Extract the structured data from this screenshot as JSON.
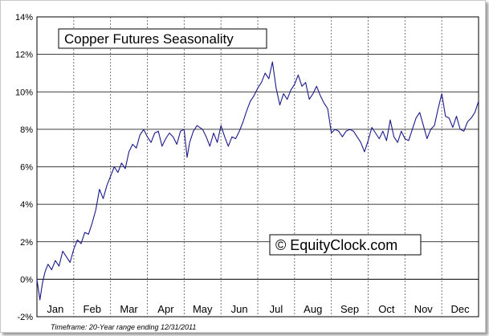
{
  "chart_data": {
    "type": "line",
    "title": "Copper Futures Seasonality",
    "watermark": "© EquityClock.com",
    "footnote": "Timeframe: 20-Year range ending 12/31/2011",
    "xlabel": "",
    "ylabel": "",
    "ylim": [
      -2,
      14
    ],
    "y_ticks": [
      -2,
      0,
      2,
      4,
      6,
      8,
      10,
      12,
      14
    ],
    "y_tick_labels": [
      "-2%",
      "0%",
      "2%",
      "4%",
      "6%",
      "8%",
      "10%",
      "12%",
      "14%"
    ],
    "categories": [
      "Jan",
      "Feb",
      "Mar",
      "Apr",
      "May",
      "Jun",
      "Jul",
      "Aug",
      "Sep",
      "Oct",
      "Nov",
      "Dec"
    ],
    "grid": true,
    "line_color": "#1a1a8c",
    "series": [
      {
        "x": [
          0.0,
          0.08,
          0.15,
          0.22,
          0.3,
          0.4,
          0.5,
          0.6,
          0.7,
          0.8,
          0.9,
          1.0,
          1.1,
          1.2,
          1.3,
          1.4,
          1.5,
          1.6,
          1.7,
          1.8,
          1.9,
          2.0,
          2.1,
          2.2,
          2.3,
          2.4,
          2.5,
          2.6,
          2.7,
          2.8,
          2.9,
          3.0,
          3.1,
          3.2,
          3.3,
          3.4,
          3.5,
          3.6,
          3.7,
          3.8,
          3.9,
          4.0,
          4.08,
          4.15,
          4.25,
          4.35,
          4.5,
          4.6,
          4.7,
          4.8,
          4.9,
          5.0,
          5.1,
          5.2,
          5.3,
          5.4,
          5.5,
          5.6,
          5.7,
          5.8,
          5.9,
          6.0,
          6.1,
          6.2,
          6.3,
          6.4,
          6.5,
          6.6,
          6.7,
          6.8,
          6.9,
          7.0,
          7.1,
          7.2,
          7.3,
          7.4,
          7.5,
          7.6,
          7.7,
          7.8,
          7.9,
          8.0,
          8.1,
          8.2,
          8.3,
          8.4,
          8.5,
          8.6,
          8.7,
          8.8,
          8.9,
          9.0,
          9.1,
          9.2,
          9.3,
          9.4,
          9.5,
          9.6,
          9.7,
          9.8,
          9.9,
          10.0,
          10.1,
          10.2,
          10.3,
          10.4,
          10.5,
          10.6,
          10.7,
          10.8,
          10.9,
          11.0,
          11.1,
          11.2,
          11.3,
          11.4,
          11.5,
          11.6,
          11.7,
          11.8,
          11.9,
          12.0
        ],
        "values": [
          0.0,
          -1.1,
          -0.2,
          0.4,
          0.8,
          0.5,
          1.0,
          0.7,
          1.5,
          1.2,
          0.9,
          1.6,
          2.1,
          1.9,
          2.5,
          2.4,
          3.0,
          3.7,
          4.8,
          4.3,
          5.0,
          5.5,
          6.0,
          5.7,
          6.2,
          5.9,
          6.8,
          7.2,
          7.0,
          7.7,
          8.0,
          7.6,
          7.3,
          7.8,
          7.9,
          7.1,
          7.5,
          7.8,
          7.6,
          7.2,
          7.9,
          8.0,
          6.5,
          7.3,
          7.9,
          8.2,
          8.0,
          7.6,
          7.1,
          7.8,
          7.3,
          8.2,
          7.6,
          7.1,
          7.6,
          7.5,
          7.9,
          8.4,
          9.0,
          9.5,
          9.8,
          10.2,
          10.5,
          11.0,
          10.7,
          11.6,
          10.2,
          9.3,
          9.9,
          9.6,
          10.1,
          10.4,
          10.9,
          10.3,
          10.5,
          9.6,
          9.9,
          10.3,
          9.8,
          9.4,
          9.1,
          7.8,
          8.0,
          7.9,
          7.6,
          7.9,
          8.0,
          7.9,
          7.6,
          7.3,
          6.8,
          7.4,
          8.1,
          7.8,
          7.5,
          7.9,
          7.4,
          8.5,
          7.6,
          7.3,
          7.9,
          7.5,
          7.4,
          8.0,
          8.6,
          8.9,
          8.2,
          7.5,
          8.0,
          8.2,
          9.1,
          9.9,
          8.7,
          8.6,
          8.1,
          8.7,
          8.0,
          7.9,
          8.4,
          8.6,
          8.9,
          9.5
        ]
      }
    ]
  }
}
